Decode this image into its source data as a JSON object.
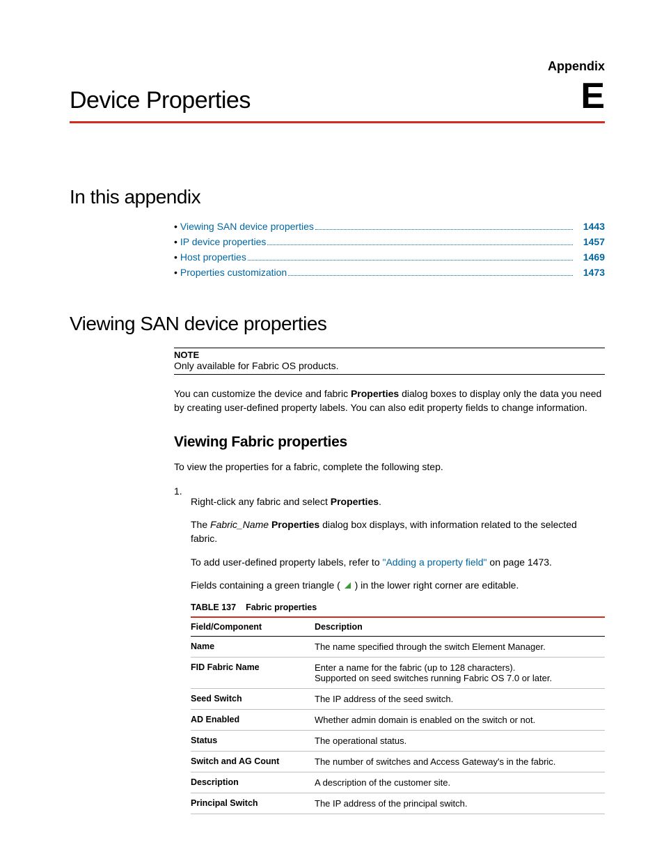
{
  "header": {
    "appendix_label": "Appendix",
    "title": "Device Properties",
    "letter": "E"
  },
  "section_in_appendix": {
    "heading": "In this appendix",
    "toc": [
      {
        "label": "Viewing SAN device properties",
        "page": "1443"
      },
      {
        "label": "IP device properties",
        "page": "1457"
      },
      {
        "label": "Host properties",
        "page": "1469"
      },
      {
        "label": "Properties customization",
        "page": "1473"
      }
    ]
  },
  "section_viewing": {
    "heading": "Viewing SAN device properties",
    "note_label": "NOTE",
    "note_text": "Only available for Fabric OS products.",
    "intro_p1_a": "You can customize the device and fabric ",
    "intro_p1_bold": "Properties",
    "intro_p1_b": " dialog boxes to display only the data you need by creating user-defined property labels. You can also edit property fields to change information.",
    "sub_heading": "Viewing Fabric properties",
    "sub_intro": "To view the properties for a fabric, complete the following step.",
    "step_num": "1.",
    "step_a": "Right-click any fabric and select ",
    "step_bold": "Properties",
    "step_b": ".",
    "step_p2_a": "The ",
    "step_p2_italic": "Fabric_Name",
    "step_p2_b": " ",
    "step_p2_bold": "Properties",
    "step_p2_c": " dialog box displays, with information related to the selected fabric.",
    "step_p3_a": "To add user-defined property labels, refer to ",
    "step_p3_link": "\"Adding a property field\"",
    "step_p3_b": " on page 1473.",
    "step_p4_a": "Fields containing a green triangle ( ",
    "step_p4_b": " ) in the lower right corner are editable.",
    "table_label": "TABLE 137",
    "table_title": "Fabric properties",
    "table_head": {
      "c1": "Field/Component",
      "c2": "Description"
    },
    "rows": [
      {
        "f": "Name",
        "d": "The name specified through the switch Element Manager."
      },
      {
        "f": "FID Fabric Name",
        "d": "Enter a name for the fabric (up to 128 characters).\nSupported on seed switches running Fabric OS 7.0 or later."
      },
      {
        "f": "Seed Switch",
        "d": "The IP address of the seed switch."
      },
      {
        "f": "AD Enabled",
        "d": "Whether admin domain is enabled on the switch or not."
      },
      {
        "f": "Status",
        "d": "The operational status."
      },
      {
        "f": "Switch and AG Count",
        "d": "The number of switches and Access Gateway's in the fabric."
      },
      {
        "f": "Description",
        "d": "A description of the customer site."
      },
      {
        "f": "Principal Switch",
        "d": "The IP address of the principal switch."
      }
    ]
  },
  "colors": {
    "rule_red": "#d52b1e",
    "link_blue": "#0066a1",
    "triangle_green": "#3a9b3a",
    "row_border": "#bfbfbf"
  }
}
